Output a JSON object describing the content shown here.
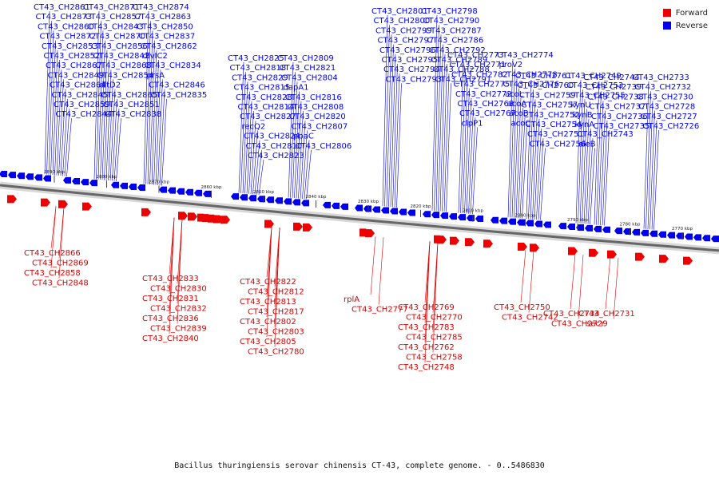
{
  "caption": "Bacillus thuringiensis serovar chinensis CT-43, complete genome. - 0..5486830",
  "legend": {
    "forward_label": "Forward",
    "reverse_label": "Reverse",
    "forward_color": "#ee0000",
    "reverse_color": "#0000ee"
  },
  "kbp_ticks": [
    "2890 kbp",
    "2880 kbp",
    "2870 kbp",
    "2860 kbp",
    "2850 kbp",
    "2840 kbp",
    "2830 kbp",
    "2820 kbp",
    "2810 kbp",
    "2800 kbp",
    "2790 kbp",
    "2780 kbp",
    "2770 kbp"
  ],
  "reverse_labels": [
    "CT43_CH2861",
    "CT43_CH2873",
    "CT43_CH2860",
    "CT43_CH2872",
    "CT43_CH2853",
    "CT43_CH2852",
    "CT43_CH2867",
    "CT43_CH2849",
    "CT43_CH2864",
    "CT43_CH2845",
    "CT43_CH2859",
    "CT43_CH2844",
    "CT43_CH2871",
    "CT43_CH2857",
    "CT43_CH2843",
    "CT43_CH2870",
    "CT43_CH2856",
    "CT43_CH2842",
    "CT43_CH2868",
    "CT43_CH2854",
    "dltD2",
    "CT43_CH2865",
    "CT43_CH2851",
    "CT43_CH2838",
    "CT43_CH2874",
    "CT43_CH2863",
    "CT43_CH2850",
    "CT43_CH2837",
    "CT43_CH2862",
    "dlvIC2",
    "CT43_CH2834",
    "prsA",
    "CT43_CH2846",
    "CT43_CH2835",
    "CT43_CH2825",
    "CT43_CH2818",
    "CT43_CH2829",
    "CT43_CH2815",
    "CT43_CH2828",
    "CT43_CH2814",
    "CT43_CH2827",
    "recQ2",
    "CT43_CH2824",
    "CT43_CH2810",
    "CT43_CH2823",
    "CT43_CH2809",
    "CT43_CH2821",
    "CT43_CH2804",
    "dapA1",
    "CT43_CH2816",
    "CT43_CH2808",
    "CT43_CH2820",
    "CT43_CH2807",
    "ppaC",
    "CT43_CH2806",
    "CT43_CH2801",
    "CT43_CH2800",
    "CT43_CH2799",
    "CT43_CH2797",
    "CT43_CH2796",
    "CT43_CH2795",
    "CT43_CH2794",
    "CT43_CH2793",
    "CT43_CH2798",
    "CT43_CH2790",
    "CT43_CH2787",
    "CT43_CH2786",
    "CT43_CH2792",
    "CT43_CH2789",
    "CT43_CH2788",
    "CT43_CH2791",
    "CT43_CH2773",
    "CT43_CH2771",
    "CT43_CH2782",
    "CT43_CH2775",
    "CT43_CH2772",
    "CT43_CH2768",
    "CT43_CH2767",
    "clpP1",
    "CT43_CH2774",
    "proV2",
    "CT43_CH2778",
    "CT43_CH2776",
    "acoL",
    "acoA",
    "acoB",
    "acoC",
    "CT43_CH2761",
    "CT43_CH2760",
    "CT43_CH2759",
    "CT43_CH2757",
    "CT43_CH2752",
    "CT43_CH2754",
    "CT43_CH2751",
    "CT43_CH2756",
    "CT43_CH2749",
    "CT43_CH2753",
    "CT43_CH2755",
    "kynU",
    "kynB",
    "kynA",
    "CT43_CH2743",
    "sleB",
    "CT43_CH2744",
    "CT43_CH2739",
    "CT43_CH2738",
    "CT43_CH2737",
    "CT43_CH2736",
    "CT43_CH2735",
    "CT43_CH2733",
    "CT43_CH2732",
    "CT43_CH2730",
    "CT43_CH2728",
    "CT43_CH2727",
    "CT43_CH2726"
  ],
  "forward_labels": [
    "CT43_CH2866",
    "CT43_CH2869",
    "CT43_CH2858",
    "CT43_CH2848",
    "CT43_CH2833",
    "CT43_CH2830",
    "CT43_CH2831",
    "CT43_CH2832",
    "CT43_CH2836",
    "CT43_CH2839",
    "CT43_CH2840",
    "CT43_CH2822",
    "CT43_CH2812",
    "CT43_CH2813",
    "CT43_CH2817",
    "CT43_CH2802",
    "CT43_CH2803",
    "CT43_CH2805",
    "CT43_CH2780",
    "rplA",
    "CT43_CH2777",
    "CT43_CH2769",
    "CT43_CH2770",
    "CT43_CH2783",
    "CT43_CH2785",
    "CT43_CH2762",
    "CT43_CH2758",
    "CT43_CH2748",
    "CT43_CH2750",
    "CT43_CH2742",
    "CT43_CH2734",
    "CT43_CH2729",
    "CT43_CH2731",
    "secY"
  ]
}
